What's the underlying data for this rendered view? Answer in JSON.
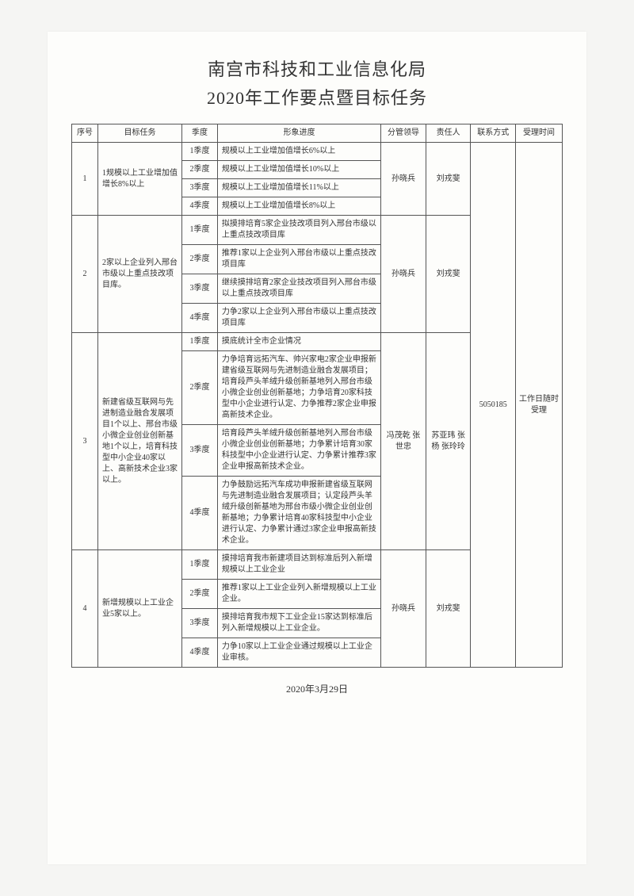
{
  "title1": "南宫市科技和工业信息化局",
  "title2": "2020年工作要点暨目标任务",
  "headers": {
    "seq": "序号",
    "task": "目标任务",
    "quarter": "季度",
    "progress": "形象进度",
    "leader": "分管领导",
    "responsible": "责任人",
    "contact": "联系方式",
    "time": "受理时间"
  },
  "shared": {
    "contact": "5050185",
    "time": "工作日随时受理"
  },
  "rows": [
    {
      "seq": "1",
      "task": "1规模以上工业增加值增长8%以上",
      "leader": "孙晓兵",
      "responsible": "刘戎斐",
      "quarters": [
        {
          "q": "1季度",
          "desc": "规模以上工业增加值增长6%以上"
        },
        {
          "q": "2季度",
          "desc": "规模以上工业增加值增长10%以上"
        },
        {
          "q": "3季度",
          "desc": "规模以上工业增加值增长11%以上"
        },
        {
          "q": "4季度",
          "desc": "规模以上工业增加值增长8%以上"
        }
      ]
    },
    {
      "seq": "2",
      "task": "2家以上企业列入邢台市级以上重点技改项目库。",
      "leader": "孙晓兵",
      "responsible": "刘戎斐",
      "quarters": [
        {
          "q": "1季度",
          "desc": "拟摸排培育5家企业技改项目列入邢台市级以上重点技改项目库"
        },
        {
          "q": "2季度",
          "desc": "推荐1家以上企业列入邢台市级以上重点技改项目库"
        },
        {
          "q": "3季度",
          "desc": "继续摸排培育2家企业技改项目列入邢台市级以上重点技改项目库"
        },
        {
          "q": "4季度",
          "desc": "力争2家以上企业列入邢台市级以上重点技改项目库"
        }
      ]
    },
    {
      "seq": "3",
      "task": "新建省级互联网与先进制造业融合发展项目1个以上、邢台市级小微企业创业创新基地1个以上，培育科技型中小企业40家以上、高新技术企业3家以上。",
      "leader": "冯茂乾 张世忠",
      "responsible": "苏亚玮 张　杨 张玲玲",
      "quarters": [
        {
          "q": "1季度",
          "desc": "摸底统计全市企业情况"
        },
        {
          "q": "2季度",
          "desc": "力争培育远拓汽车、帅兴家电2家企业申报新建省级互联网与先进制造业融合发展项目；培育段芦头羊绒升级创新基地列入邢台市级小微企业创业创新基地；力争培育20家科技型中小企业进行认定、力争推荐2家企业申报高新技术企业。"
        },
        {
          "q": "3季度",
          "desc": "培育段芦头羊绒升级创新基地列入邢台市级小微企业创业创新基地；力争累计培育30家科技型中小企业进行认定、力争累计推荐3家企业申报高新技术企业。"
        },
        {
          "q": "4季度",
          "desc": "力争鼓励远拓汽车成功申报新建省级互联网与先进制造业融合发展项目；认定段芦头羊绒升级创新基地为邢台市级小微企业创业创新基地；力争累计培育40家科技型中小企业进行认定、力争累计通过3家企业申报高新技术企业。"
        }
      ]
    },
    {
      "seq": "4",
      "task": "新增规模以上工业企业5家以上。",
      "leader": "孙晓兵",
      "responsible": "刘戎斐",
      "quarters": [
        {
          "q": "1季度",
          "desc": "摸排培育我市新建项目达到标准后列入新增规模以上工业企业"
        },
        {
          "q": "2季度",
          "desc": "推荐1家以上工业企业列入新增规模以上工业企业。"
        },
        {
          "q": "3季度",
          "desc": "摸排培育我市规下工业企业15家达到标准后列入新增规模以上工业企业。"
        },
        {
          "q": "4季度",
          "desc": "力争10家以上工业企业通过规模以上工业企业审核。"
        }
      ]
    }
  ],
  "footer_date": "2020年3月29日"
}
